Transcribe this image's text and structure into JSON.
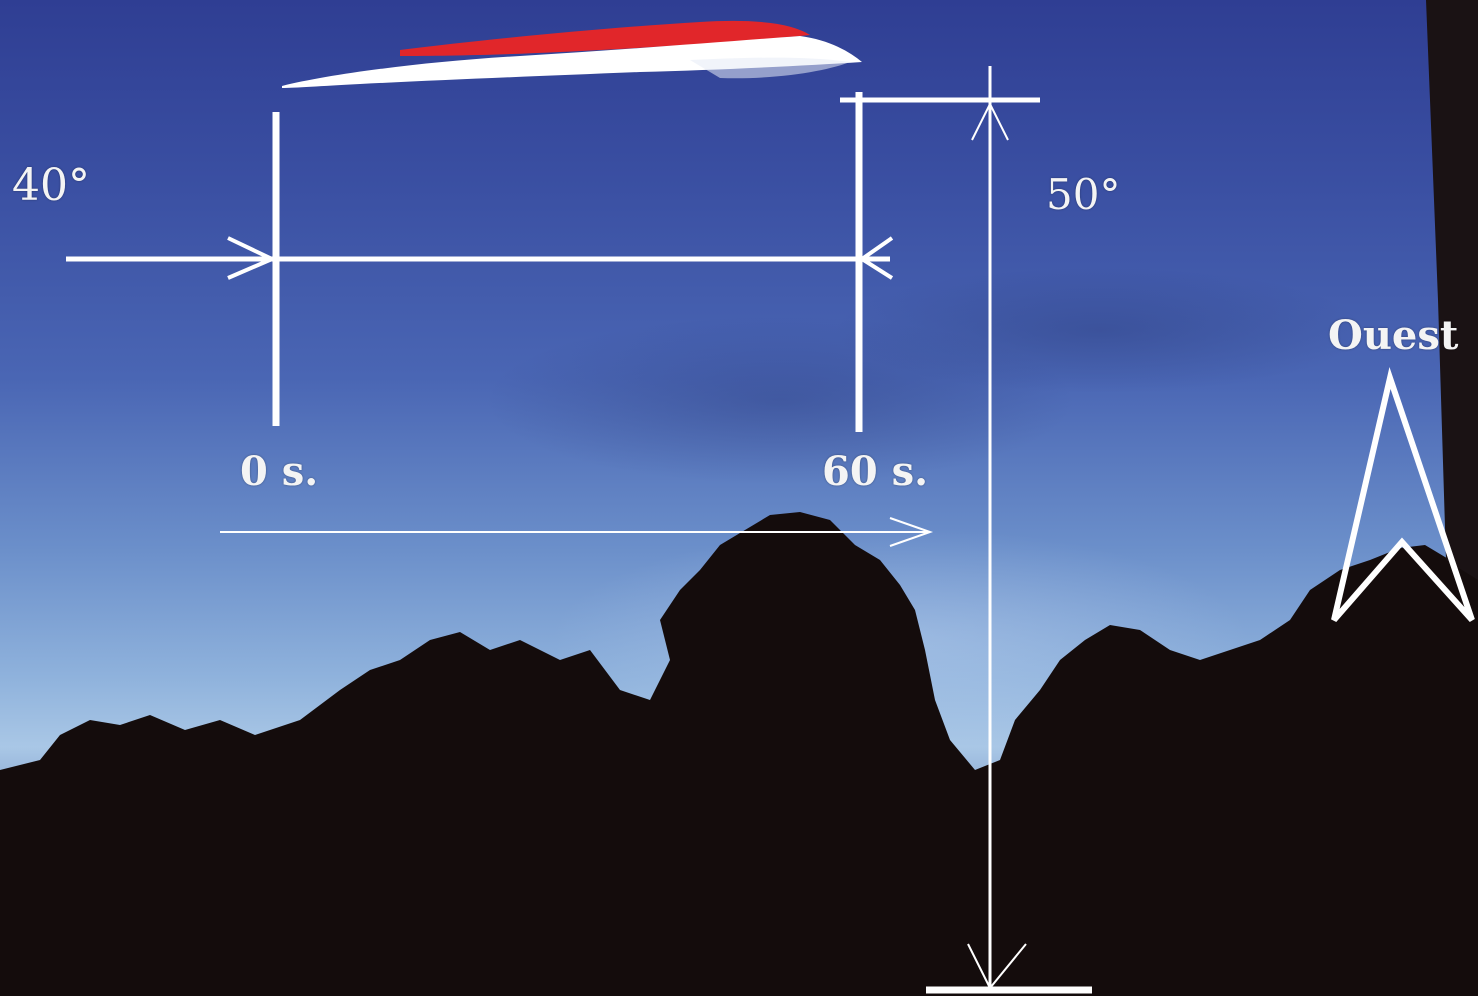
{
  "annotations": {
    "angle_left": "40°",
    "angle_right": "50°",
    "time_start": "0 s.",
    "time_end": "60 s.",
    "direction": "Ouest"
  },
  "colors": {
    "annotation": "#ffffff",
    "trail_red": "#e1262a",
    "trail_white": "#ffffff",
    "treeline": "#140c0c"
  },
  "icons": {
    "compass_arrow": "north-arrow-icon"
  }
}
